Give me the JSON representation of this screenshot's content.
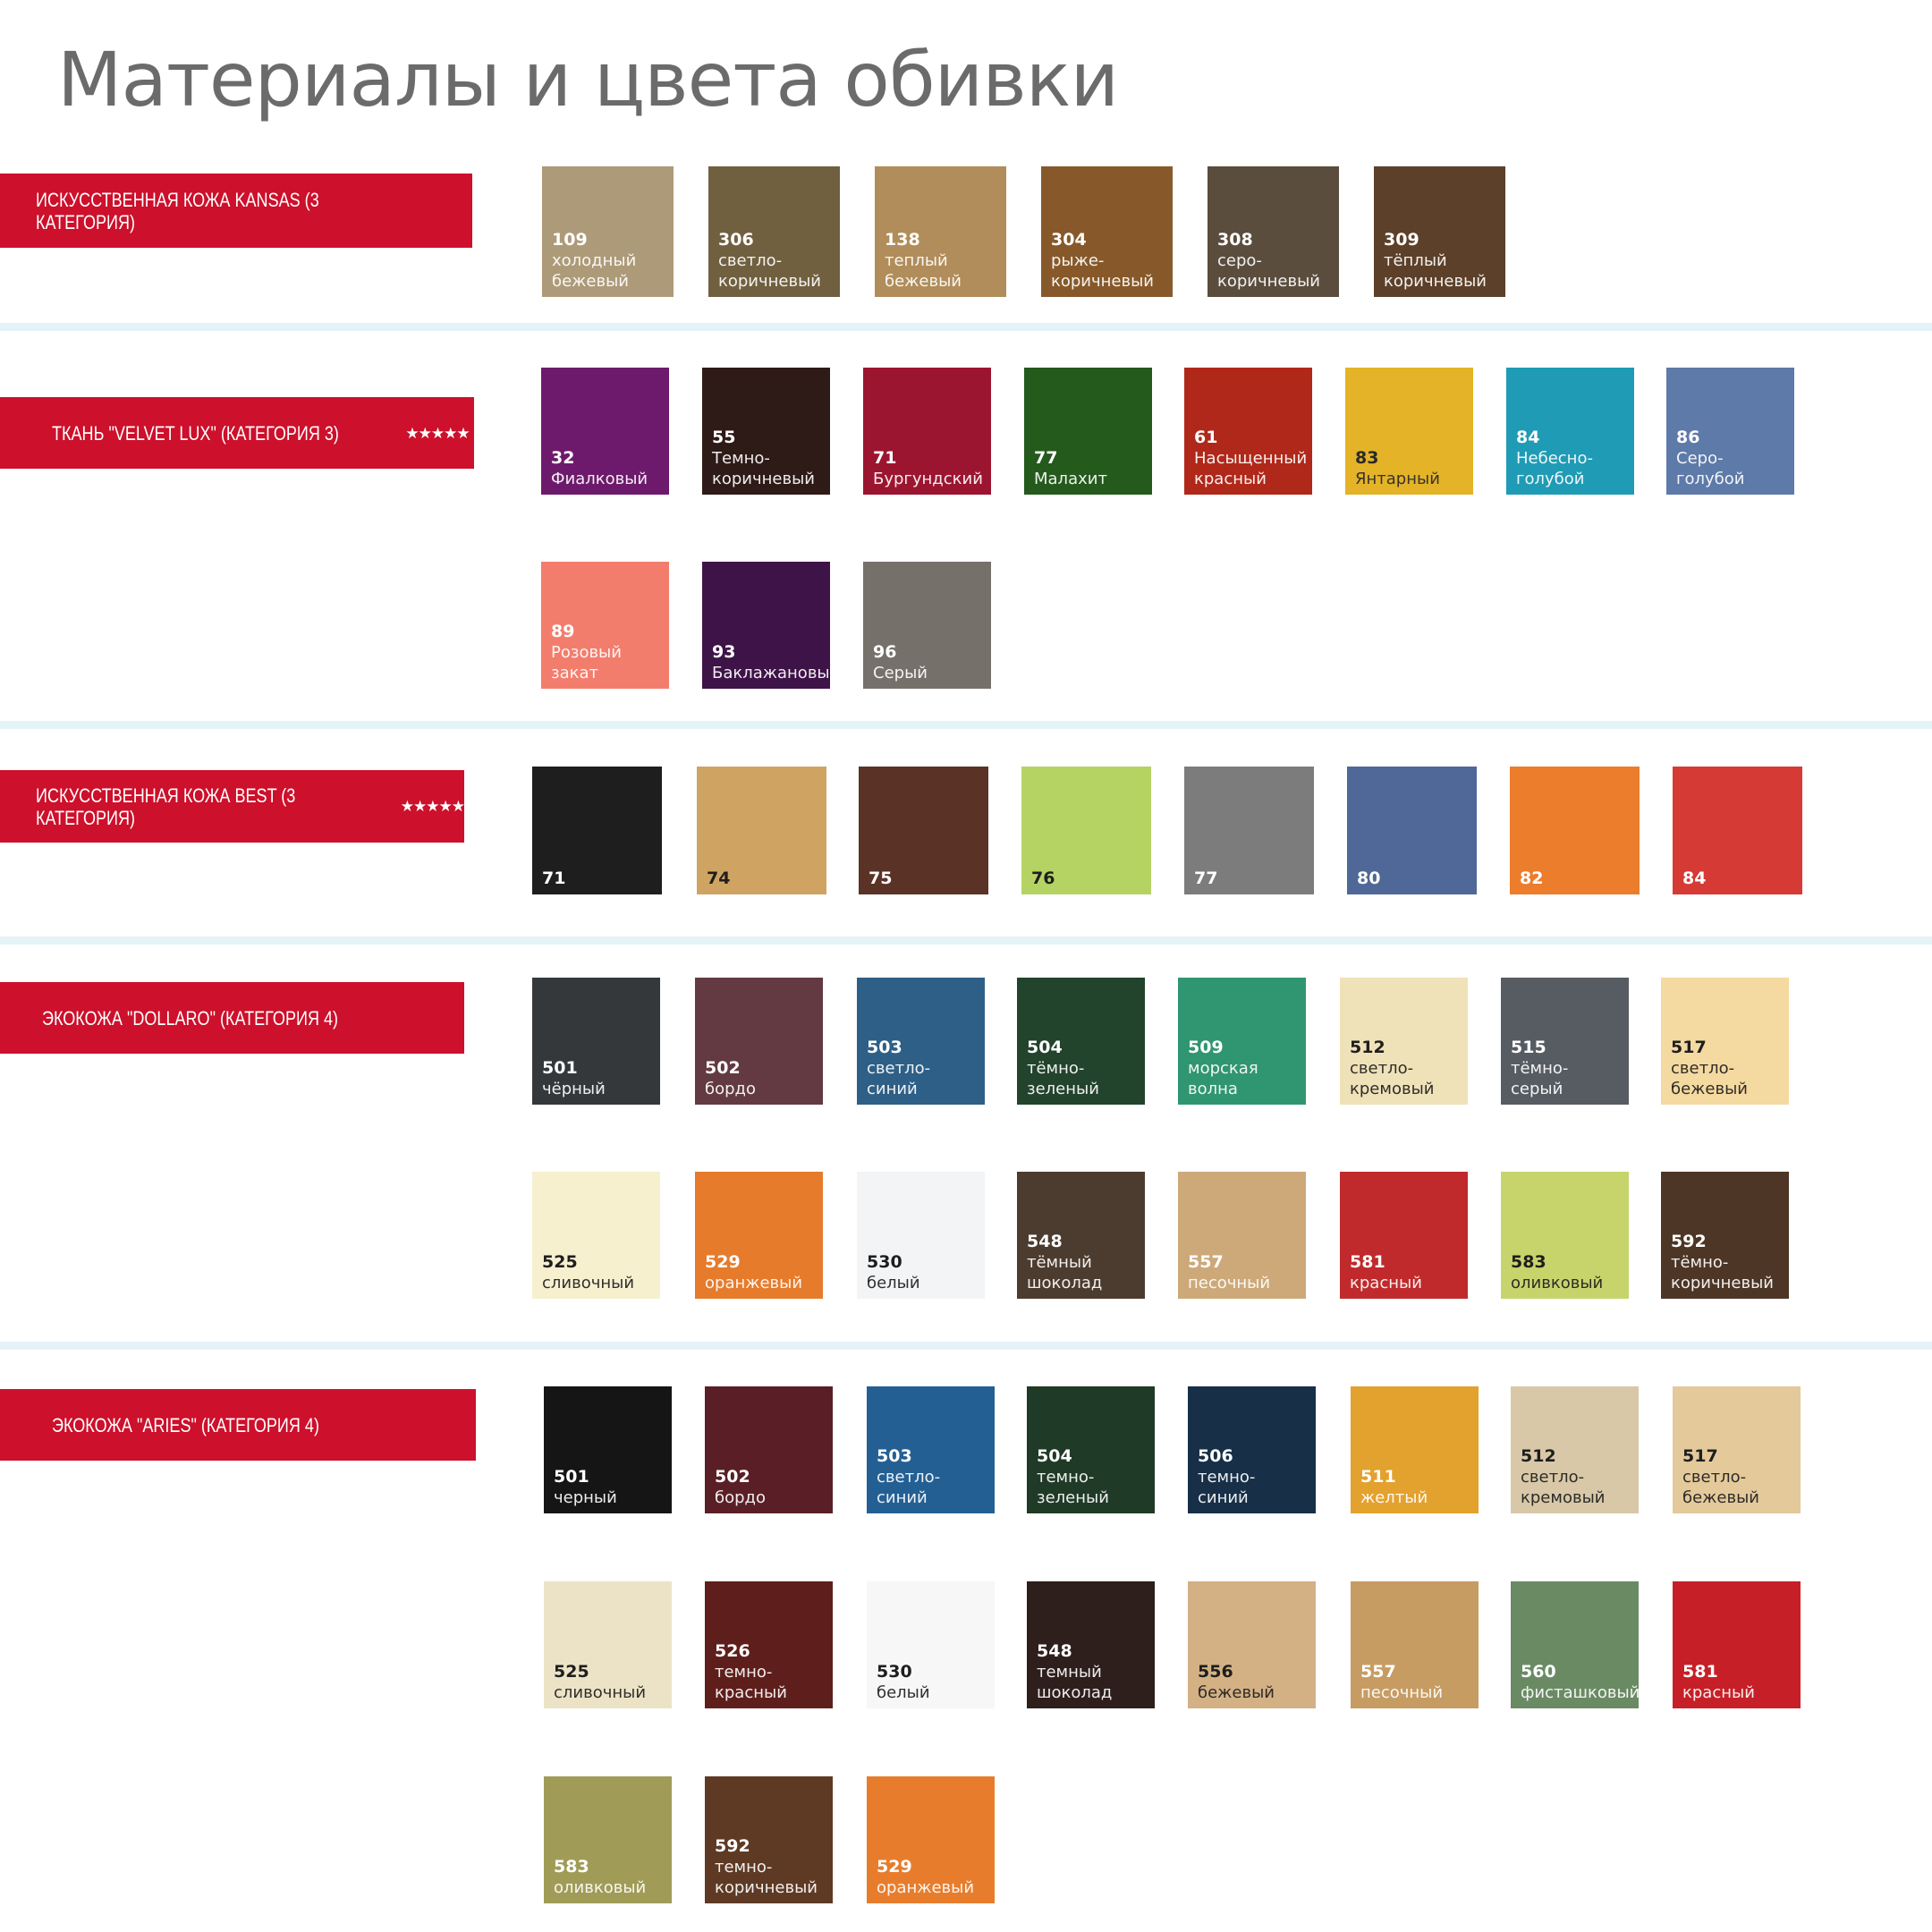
{
  "page_title": "Материалы и цвета обивки",
  "sections": [
    {
      "title": "ИСКУССТВЕННАЯ КОЖА KANSAS (3 КАТЕГОРИЯ)",
      "stars": 0,
      "swatches": [
        {
          "code": "109",
          "name": "холодный бежевый",
          "color": "#ad9a78",
          "text": "#ffffff"
        },
        {
          "code": "306",
          "name": "светло-коричневый",
          "color": "#71603f",
          "text": "#ffffff"
        },
        {
          "code": "138",
          "name": "теплый бежевый",
          "color": "#b08d5a",
          "text": "#ffffff"
        },
        {
          "code": "304",
          "name": "рыже-коричневый",
          "color": "#87592a",
          "text": "#ffffff"
        },
        {
          "code": "308",
          "name": "серо-коричневый",
          "color": "#5a4d3e",
          "text": "#ffffff"
        },
        {
          "code": "309",
          "name": "тёплый коричневый",
          "color": "#5c4029",
          "text": "#ffffff"
        }
      ]
    },
    {
      "title": "ТКАНЬ \"VELVET LUX\" (КАТЕГОРИЯ 3)",
      "stars": 5,
      "swatches": [
        {
          "code": "32",
          "name": "Фиалковый",
          "color": "#6e1a6c",
          "text": "#ffffff"
        },
        {
          "code": "55",
          "name": "Темно-коричневый",
          "color": "#2e1a17",
          "text": "#ffffff"
        },
        {
          "code": "71",
          "name": "Бургундский",
          "color": "#9c1530",
          "text": "#ffffff"
        },
        {
          "code": "77",
          "name": "Малахит",
          "color": "#245a1c",
          "text": "#ffffff"
        },
        {
          "code": "61",
          "name": "Насыщенный красный",
          "color": "#b0281a",
          "text": "#ffffff"
        },
        {
          "code": "83",
          "name": "Янтарный",
          "color": "#e4b328",
          "text": "#2a2a2a"
        },
        {
          "code": "84",
          "name": "Небесно-голубой",
          "color": "#1f9bb5",
          "text": "#ffffff"
        },
        {
          "code": "86",
          "name": "Серо-голубой",
          "color": "#5d7aa8",
          "text": "#ffffff"
        },
        {
          "code": "89",
          "name": "Розовый закат",
          "color": "#f37d6d",
          "text": "#ffffff"
        },
        {
          "code": "93",
          "name": "Баклажановый",
          "color": "#3e1347",
          "text": "#ffffff"
        },
        {
          "code": "96",
          "name": "Серый",
          "color": "#76706a",
          "text": "#ffffff"
        }
      ]
    },
    {
      "title": "ИСКУССТВЕННАЯ КОЖА BEST (3 КАТЕГОРИЯ)",
      "stars": 5,
      "swatches": [
        {
          "code": "71",
          "name": "",
          "color": "#1e1e1e",
          "text": "#ffffff"
        },
        {
          "code": "74",
          "name": "",
          "color": "#cfa463",
          "text": "#1e1e1e"
        },
        {
          "code": "75",
          "name": "",
          "color": "#5a3326",
          "text": "#ffffff"
        },
        {
          "code": "76",
          "name": "",
          "color": "#b5d363",
          "text": "#1e1e1e"
        },
        {
          "code": "77",
          "name": "",
          "color": "#7c7c7c",
          "text": "#ffffff"
        },
        {
          "code": "80",
          "name": "",
          "color": "#4f6897",
          "text": "#ffffff"
        },
        {
          "code": "82",
          "name": "",
          "color": "#ec7d2c",
          "text": "#ffffff"
        },
        {
          "code": "84",
          "name": "",
          "color": "#d63a35",
          "text": "#ffffff"
        }
      ]
    },
    {
      "title": "ЭКОКОЖА \"DOLLARO\" (КАТЕГОРИЯ 4)",
      "stars": 0,
      "swatches": [
        {
          "code": "501",
          "name": "чёрный",
          "color": "#35383b",
          "text": "#ffffff"
        },
        {
          "code": "502",
          "name": "бордо",
          "color": "#633a42",
          "text": "#ffffff"
        },
        {
          "code": "503",
          "name": "светло-синий",
          "color": "#2e5f86",
          "text": "#ffffff"
        },
        {
          "code": "504",
          "name": "тёмно-зеленый",
          "color": "#22432c",
          "text": "#ffffff"
        },
        {
          "code": "509",
          "name": "морская волна",
          "color": "#2f9671",
          "text": "#ffffff"
        },
        {
          "code": "512",
          "name": "светло-кремовый",
          "color": "#efe2b8",
          "text": "#1e1e1e"
        },
        {
          "code": "515",
          "name": "тёмно-серый",
          "color": "#575c63",
          "text": "#ffffff"
        },
        {
          "code": "517",
          "name": "светло-бежевый",
          "color": "#f4d9a0",
          "text": "#1e1e1e"
        },
        {
          "code": "525",
          "name": "сливочный",
          "color": "#f6f0cf",
          "text": "#1e1e1e"
        },
        {
          "code": "529",
          "name": "оранжевый",
          "color": "#e67b2c",
          "text": "#ffffff"
        },
        {
          "code": "530",
          "name": "белый",
          "color": "#f3f4f6",
          "text": "#1e1e1e"
        },
        {
          "code": "548",
          "name": "тёмный шоколад",
          "color": "#4c3c2f",
          "text": "#ffffff"
        },
        {
          "code": "557",
          "name": "песочный",
          "color": "#cda97a",
          "text": "#ffffff"
        },
        {
          "code": "581",
          "name": "красный",
          "color": "#c02a2c",
          "text": "#ffffff"
        },
        {
          "code": "583",
          "name": "оливковый",
          "color": "#c7d46c",
          "text": "#1e1e1e"
        },
        {
          "code": "592",
          "name": "тёмно-коричневый",
          "color": "#4d3626",
          "text": "#ffffff"
        }
      ]
    },
    {
      "title": "ЭКОКОЖА \"ARIES\" (КАТЕГОРИЯ 4)",
      "stars": 0,
      "swatches": [
        {
          "code": "501",
          "name": "черный",
          "color": "#151515",
          "text": "#ffffff"
        },
        {
          "code": "502",
          "name": "бордо",
          "color": "#5a1f26",
          "text": "#ffffff"
        },
        {
          "code": "503",
          "name": "светло-синий",
          "color": "#245f94",
          "text": "#ffffff"
        },
        {
          "code": "504",
          "name": "темно-зеленый",
          "color": "#1f3a26",
          "text": "#ffffff"
        },
        {
          "code": "506",
          "name": "темно-синий",
          "color": "#172f47",
          "text": "#ffffff"
        },
        {
          "code": "511",
          "name": "желтый",
          "color": "#e3a12e",
          "text": "#ffffff"
        },
        {
          "code": "512",
          "name": "светло-кремовый",
          "color": "#d8c8a7",
          "text": "#1e1e1e"
        },
        {
          "code": "517",
          "name": "светло-бежевый",
          "color": "#e4c99b",
          "text": "#1e1e1e"
        },
        {
          "code": "525",
          "name": "сливочный",
          "color": "#ece3c6",
          "text": "#1e1e1e"
        },
        {
          "code": "526",
          "name": "темно-красный",
          "color": "#5e1f1c",
          "text": "#ffffff"
        },
        {
          "code": "530",
          "name": "белый",
          "color": "#f7f7f7",
          "text": "#1e1e1e"
        },
        {
          "code": "548",
          "name": "темный шоколад",
          "color": "#2e1e1c",
          "text": "#ffffff"
        },
        {
          "code": "556",
          "name": "бежевый",
          "color": "#d3b184",
          "text": "#1e1e1e"
        },
        {
          "code": "557",
          "name": "песочный",
          "color": "#c79c63",
          "text": "#ffffff"
        },
        {
          "code": "560",
          "name": "фисташковый",
          "color": "#6a8a64",
          "text": "#ffffff"
        },
        {
          "code": "581",
          "name": "красный",
          "color": "#c71f27",
          "text": "#ffffff"
        },
        {
          "code": "583",
          "name": "оливковый",
          "color": "#a09c57",
          "text": "#ffffff"
        },
        {
          "code": "592",
          "name": "темно-коричневый",
          "color": "#5e3a24",
          "text": "#ffffff"
        },
        {
          "code": "529",
          "name": "оранжевый",
          "color": "#e77d2c",
          "text": "#ffffff"
        }
      ]
    }
  ]
}
